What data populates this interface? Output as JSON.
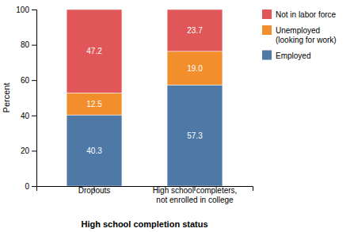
{
  "chart_data": {
    "type": "bar",
    "stacked": true,
    "xlabel": "High school completion status",
    "ylabel": "Percent",
    "categories": [
      "Dropouts",
      "High school completers,\nnot enrolled in college"
    ],
    "series": [
      {
        "name": "Employed",
        "values": [
          40.3,
          57.3
        ],
        "value_labels": [
          "40.3",
          "57.3"
        ]
      },
      {
        "name": "Unemployed\n(looking for work)",
        "values": [
          12.5,
          19.0
        ],
        "value_labels": [
          "12.5",
          "19.0"
        ]
      },
      {
        "name": "Not in labor force",
        "values": [
          47.2,
          23.7
        ],
        "value_labels": [
          "47.2",
          "23.7"
        ]
      }
    ],
    "ylim": [
      0,
      100
    ],
    "yticks": [
      0,
      20,
      40,
      60,
      80,
      100
    ],
    "grid": false,
    "legend": "right",
    "data_labels": true
  }
}
